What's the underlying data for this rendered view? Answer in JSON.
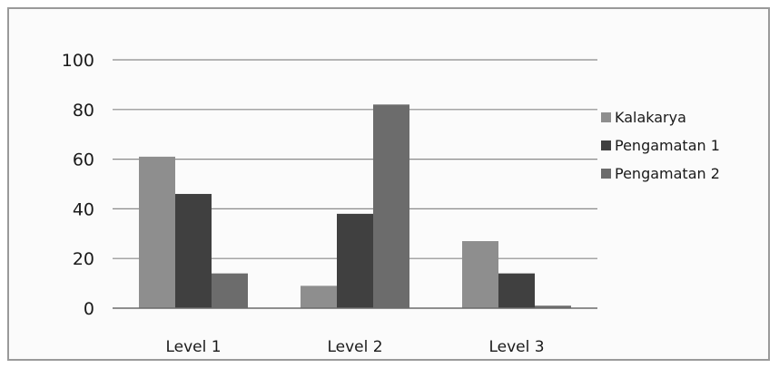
{
  "chart_data": {
    "type": "bar",
    "categories": [
      "Level 1",
      "Level 2",
      "Level 3"
    ],
    "series": [
      {
        "name": "Kalakarya",
        "values": [
          61,
          9,
          27
        ],
        "color": "#8e8e8e"
      },
      {
        "name": "Pengamatan 1",
        "values": [
          46,
          38,
          14
        ],
        "color": "#404040"
      },
      {
        "name": "Pengamatan 2",
        "values": [
          14,
          82,
          1
        ],
        "color": "#6c6c6c"
      }
    ],
    "yticks": [
      0,
      20,
      40,
      60,
      80,
      100
    ],
    "ylim": [
      0,
      100
    ],
    "grid": true,
    "legend_position": "right"
  }
}
